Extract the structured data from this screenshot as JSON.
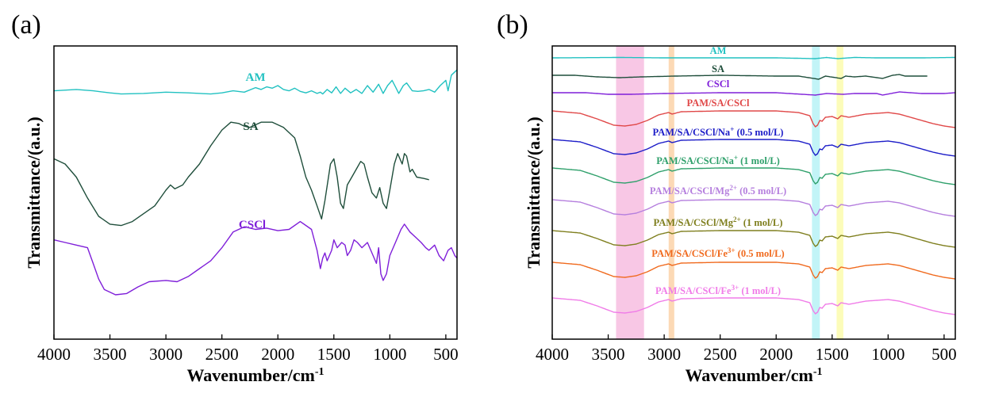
{
  "chart_data": [
    {
      "panel": "(a)",
      "type": "line",
      "xlabel": "Wavenumber/cm",
      "xlabel_sup": "-1",
      "ylabel": "Transmittance/(a.u.)",
      "x_range": [
        4000,
        400
      ],
      "x_reversed": true,
      "x_ticks": [
        4000,
        3500,
        3000,
        2500,
        2000,
        1500,
        1000,
        500
      ],
      "x_tick_labels": [
        "4000",
        "3500",
        "3000",
        "2500",
        "2000",
        "1500",
        "1000",
        "500"
      ],
      "y_ticks": false,
      "grid": false,
      "series": [
        {
          "name": "AM",
          "color": "#21c1c1",
          "points": [
            [
              4000,
              0.88
            ],
            [
              3800,
              0.885
            ],
            [
              3650,
              0.88
            ],
            [
              3500,
              0.872
            ],
            [
              3400,
              0.868
            ],
            [
              3200,
              0.87
            ],
            [
              3000,
              0.875
            ],
            [
              2800,
              0.872
            ],
            [
              2600,
              0.868
            ],
            [
              2500,
              0.872
            ],
            [
              2400,
              0.88
            ],
            [
              2300,
              0.875
            ],
            [
              2200,
              0.892
            ],
            [
              2150,
              0.885
            ],
            [
              2100,
              0.895
            ],
            [
              2050,
              0.89
            ],
            [
              2000,
              0.9
            ],
            [
              1950,
              0.885
            ],
            [
              1900,
              0.88
            ],
            [
              1850,
              0.89
            ],
            [
              1800,
              0.878
            ],
            [
              1750,
              0.872
            ],
            [
              1700,
              0.88
            ],
            [
              1650,
              0.87
            ],
            [
              1620,
              0.875
            ],
            [
              1600,
              0.868
            ],
            [
              1560,
              0.885
            ],
            [
              1520,
              0.872
            ],
            [
              1480,
              0.895
            ],
            [
              1440,
              0.87
            ],
            [
              1400,
              0.89
            ],
            [
              1350,
              0.872
            ],
            [
              1300,
              0.885
            ],
            [
              1250,
              0.87
            ],
            [
              1200,
              0.9
            ],
            [
              1150,
              0.875
            ],
            [
              1100,
              0.905
            ],
            [
              1060,
              0.87
            ],
            [
              1020,
              0.9
            ],
            [
              980,
              0.92
            ],
            [
              950,
              0.895
            ],
            [
              920,
              0.87
            ],
            [
              880,
              0.9
            ],
            [
              850,
              0.91
            ],
            [
              800,
              0.88
            ],
            [
              750,
              0.878
            ],
            [
              700,
              0.88
            ],
            [
              650,
              0.885
            ],
            [
              600,
              0.875
            ],
            [
              550,
              0.9
            ],
            [
              500,
              0.92
            ],
            [
              480,
              0.88
            ],
            [
              450,
              0.94
            ],
            [
              400,
              0.96
            ]
          ]
        },
        {
          "name": "SA",
          "color": "#1f4e3b",
          "points": [
            [
              4000,
              0.62
            ],
            [
              3900,
              0.6
            ],
            [
              3800,
              0.55
            ],
            [
              3700,
              0.47
            ],
            [
              3600,
              0.4
            ],
            [
              3500,
              0.37
            ],
            [
              3400,
              0.365
            ],
            [
              3300,
              0.38
            ],
            [
              3200,
              0.41
            ],
            [
              3100,
              0.44
            ],
            [
              3050,
              0.47
            ],
            [
              3000,
              0.5
            ],
            [
              2960,
              0.52
            ],
            [
              2920,
              0.505
            ],
            [
              2850,
              0.52
            ],
            [
              2800,
              0.55
            ],
            [
              2700,
              0.6
            ],
            [
              2600,
              0.67
            ],
            [
              2500,
              0.73
            ],
            [
              2420,
              0.76
            ],
            [
              2350,
              0.755
            ],
            [
              2300,
              0.745
            ],
            [
              2250,
              0.74
            ],
            [
              2150,
              0.76
            ],
            [
              2050,
              0.76
            ],
            [
              1950,
              0.74
            ],
            [
              1850,
              0.7
            ],
            [
              1800,
              0.63
            ],
            [
              1750,
              0.55
            ],
            [
              1700,
              0.5
            ],
            [
              1650,
              0.44
            ],
            [
              1610,
              0.39
            ],
            [
              1580,
              0.46
            ],
            [
              1530,
              0.6
            ],
            [
              1500,
              0.62
            ],
            [
              1470,
              0.55
            ],
            [
              1440,
              0.45
            ],
            [
              1415,
              0.43
            ],
            [
              1380,
              0.52
            ],
            [
              1340,
              0.55
            ],
            [
              1300,
              0.58
            ],
            [
              1260,
              0.61
            ],
            [
              1230,
              0.6
            ],
            [
              1200,
              0.55
            ],
            [
              1160,
              0.49
            ],
            [
              1120,
              0.47
            ],
            [
              1090,
              0.51
            ],
            [
              1060,
              0.45
            ],
            [
              1030,
              0.43
            ],
            [
              1000,
              0.5
            ],
            [
              960,
              0.6
            ],
            [
              930,
              0.64
            ],
            [
              890,
              0.6
            ],
            [
              870,
              0.64
            ],
            [
              850,
              0.63
            ],
            [
              820,
              0.57
            ],
            [
              800,
              0.58
            ],
            [
              760,
              0.55
            ],
            [
              700,
              0.545
            ],
            [
              650,
              0.54
            ]
          ]
        },
        {
          "name": "CSCl",
          "color": "#7f1fd9",
          "points": [
            [
              4000,
              0.31
            ],
            [
              3900,
              0.3
            ],
            [
              3800,
              0.29
            ],
            [
              3700,
              0.28
            ],
            [
              3650,
              0.22
            ],
            [
              3600,
              0.16
            ],
            [
              3550,
              0.12
            ],
            [
              3450,
              0.1
            ],
            [
              3350,
              0.105
            ],
            [
              3250,
              0.13
            ],
            [
              3150,
              0.15
            ],
            [
              3000,
              0.155
            ],
            [
              2900,
              0.15
            ],
            [
              2800,
              0.17
            ],
            [
              2700,
              0.2
            ],
            [
              2600,
              0.23
            ],
            [
              2500,
              0.28
            ],
            [
              2400,
              0.34
            ],
            [
              2300,
              0.36
            ],
            [
              2200,
              0.35
            ],
            [
              2100,
              0.355
            ],
            [
              2000,
              0.345
            ],
            [
              1900,
              0.35
            ],
            [
              1800,
              0.38
            ],
            [
              1700,
              0.35
            ],
            [
              1650,
              0.27
            ],
            [
              1620,
              0.2
            ],
            [
              1600,
              0.24
            ],
            [
              1580,
              0.26
            ],
            [
              1560,
              0.23
            ],
            [
              1520,
              0.27
            ],
            [
              1500,
              0.31
            ],
            [
              1470,
              0.28
            ],
            [
              1430,
              0.3
            ],
            [
              1400,
              0.29
            ],
            [
              1380,
              0.25
            ],
            [
              1350,
              0.27
            ],
            [
              1320,
              0.31
            ],
            [
              1290,
              0.3
            ],
            [
              1250,
              0.28
            ],
            [
              1200,
              0.3
            ],
            [
              1150,
              0.25
            ],
            [
              1120,
              0.22
            ],
            [
              1100,
              0.28
            ],
            [
              1080,
              0.18
            ],
            [
              1060,
              0.155
            ],
            [
              1030,
              0.18
            ],
            [
              1000,
              0.25
            ],
            [
              950,
              0.3
            ],
            [
              900,
              0.35
            ],
            [
              870,
              0.37
            ],
            [
              820,
              0.34
            ],
            [
              770,
              0.32
            ],
            [
              720,
              0.3
            ],
            [
              680,
              0.28
            ],
            [
              650,
              0.27
            ],
            [
              600,
              0.29
            ],
            [
              560,
              0.25
            ],
            [
              520,
              0.23
            ],
            [
              480,
              0.27
            ],
            [
              450,
              0.28
            ],
            [
              420,
              0.25
            ],
            [
              400,
              0.24
            ]
          ]
        }
      ]
    },
    {
      "panel": "(b)",
      "type": "line",
      "xlabel": "Wavenumber/cm",
      "xlabel_sup": "-1",
      "ylabel": "Transmittance/(a.u.)",
      "x_range": [
        4000,
        400
      ],
      "x_reversed": true,
      "x_ticks": [
        4000,
        3500,
        3000,
        2500,
        2000,
        1500,
        1000,
        500
      ],
      "x_tick_labels": [
        "4000",
        "3500",
        "3000",
        "2500",
        "2000",
        "1500",
        "1000",
        "500"
      ],
      "y_ticks": false,
      "grid": false,
      "highlight_bands": [
        {
          "from": 3430,
          "to": 3180,
          "color": "#f7bde0"
        },
        {
          "from": 2960,
          "to": 2910,
          "color": "#fbd2a8"
        },
        {
          "from": 1680,
          "to": 1610,
          "color": "#b7f2f6"
        },
        {
          "from": 1460,
          "to": 1400,
          "color": "#fbfbad"
        }
      ],
      "series": [
        {
          "name": "AM",
          "color": "#21c1c1",
          "kind": "am"
        },
        {
          "name": "SA",
          "color": "#1f4e3b",
          "kind": "sa"
        },
        {
          "name": "CSCl",
          "color": "#7f1fd9",
          "kind": "cscl"
        },
        {
          "name": "PAM/SA/CSCl",
          "color": "#e04848",
          "kind": "gel"
        },
        {
          "name": "PAM/SA/CSCl/Na",
          "sup": "+",
          "suffix": " (0.5 mol/L)",
          "color": "#1c1cc8",
          "kind": "gel"
        },
        {
          "name": "PAM/SA/CSCl/Na",
          "sup": "+",
          "suffix": " (1 mol/L)",
          "color": "#2fa06b",
          "kind": "gel"
        },
        {
          "name": "PAM/SA/CSCl/Mg",
          "sup": "2+",
          "suffix": " (0.5 mol/L)",
          "color": "#b57fde",
          "kind": "gel"
        },
        {
          "name": "PAM/SA/CSCl/Mg",
          "sup": "2+",
          "suffix": " (1 mol/L)",
          "color": "#7f7f1e",
          "kind": "gel"
        },
        {
          "name": "PAM/SA/CSCl/Fe",
          "sup": "3+",
          "suffix": " (0.5 mol/L)",
          "color": "#f06a1e",
          "kind": "gel"
        },
        {
          "name": "PAM/SA/CSCl/Fe",
          "sup": "3+",
          "suffix": " (1 mol/L)",
          "color": "#f07ce8",
          "kind": "gel"
        }
      ]
    }
  ]
}
